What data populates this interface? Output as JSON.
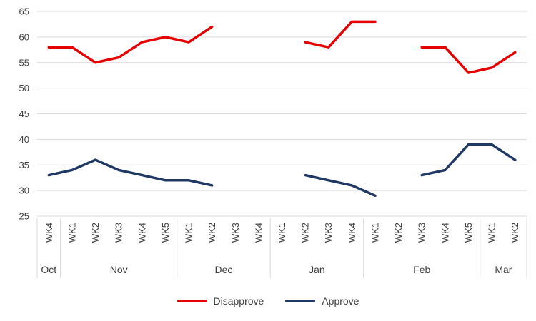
{
  "chart_data": {
    "type": "line",
    "title": "",
    "xlabel": "",
    "ylabel": "",
    "grid": true,
    "legend_position": "bottom",
    "ylim": [
      25,
      65
    ],
    "yticks": [
      25,
      30,
      35,
      40,
      45,
      50,
      55,
      60,
      65
    ],
    "categories": [
      "WK4",
      "WK1",
      "WK2",
      "WK3",
      "WK4",
      "WK5",
      "WK1",
      "WK2",
      "WK3",
      "WK4",
      "WK1",
      "WK2",
      "WK3",
      "WK4",
      "WK1",
      "WK2",
      "WK3",
      "WK4",
      "WK5",
      "WK1",
      "WK2"
    ],
    "month_groups": [
      {
        "label": "Oct",
        "count": 1
      },
      {
        "label": "Nov",
        "count": 5
      },
      {
        "label": "Dec",
        "count": 4
      },
      {
        "label": "Jan",
        "count": 4
      },
      {
        "label": "Feb",
        "count": 5
      },
      {
        "label": "Mar",
        "count": 2
      }
    ],
    "series": [
      {
        "name": "Disapprove",
        "color": "#e60000",
        "values": [
          58,
          58,
          55,
          56,
          59,
          60,
          59,
          62,
          null,
          null,
          null,
          59,
          58,
          63,
          63,
          null,
          58,
          58,
          53,
          54,
          57
        ]
      },
      {
        "name": "Approve",
        "color": "#1f3864",
        "values": [
          33,
          34,
          36,
          34,
          33,
          32,
          32,
          31,
          null,
          null,
          null,
          33,
          32,
          31,
          29,
          null,
          33,
          34,
          39,
          39,
          36
        ]
      }
    ],
    "colors": {
      "gridline": "#d9d9d9",
      "tick_text": "#404040"
    }
  }
}
